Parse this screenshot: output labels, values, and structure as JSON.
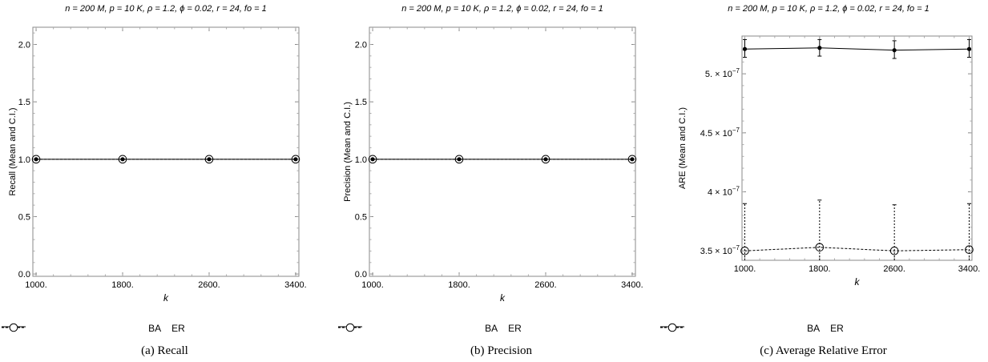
{
  "chart_data": [
    {
      "type": "line",
      "title": "n = 200 M, p = 10 K, ρ = 1.2, ϕ = 0.02, r = 24, fo = 1",
      "xlabel": "k",
      "ylabel": "Recall (Mean and C.I.)",
      "caption": "(a) Recall",
      "x": [
        1000,
        1800,
        2600,
        3400
      ],
      "x_tick_labels": [
        "1000.",
        "1800.",
        "2600.",
        "3400."
      ],
      "y_ticks": [
        0.0,
        0.5,
        1.0,
        1.5,
        2.0
      ],
      "y_tick_labels": [
        "0.0",
        "0.5",
        "1.0",
        "1.5",
        "2.0"
      ],
      "xlim": [
        970,
        3430
      ],
      "ylim": [
        -0.02,
        2.15
      ],
      "series": [
        {
          "name": "BA",
          "values": [
            1.0,
            1.0,
            1.0,
            1.0
          ],
          "ci_low": [
            1.0,
            1.0,
            1.0,
            1.0
          ],
          "ci_high": [
            1.0,
            1.0,
            1.0,
            1.0
          ]
        },
        {
          "name": "ER",
          "values": [
            1.0,
            1.0,
            1.0,
            1.0
          ],
          "ci_low": [
            1.0,
            1.0,
            1.0,
            1.0
          ],
          "ci_high": [
            1.0,
            1.0,
            1.0,
            1.0
          ]
        }
      ],
      "legend_position": "bottom"
    },
    {
      "type": "line",
      "title": "n = 200 M, p = 10 K, ρ = 1.2, ϕ = 0.02, r = 24, fo = 1",
      "xlabel": "k",
      "ylabel": "Precision (Mean and C.I.)",
      "caption": "(b) Precision",
      "x": [
        1000,
        1800,
        2600,
        3400
      ],
      "x_tick_labels": [
        "1000.",
        "1800.",
        "2600.",
        "3400."
      ],
      "y_ticks": [
        0.0,
        0.5,
        1.0,
        1.5,
        2.0
      ],
      "y_tick_labels": [
        "0.0",
        "0.5",
        "1.0",
        "1.5",
        "2.0"
      ],
      "xlim": [
        970,
        3430
      ],
      "ylim": [
        -0.02,
        2.15
      ],
      "series": [
        {
          "name": "BA",
          "values": [
            1.0,
            1.0,
            1.0,
            1.0
          ],
          "ci_low": [
            1.0,
            1.0,
            1.0,
            1.0
          ],
          "ci_high": [
            1.0,
            1.0,
            1.0,
            1.0
          ]
        },
        {
          "name": "ER",
          "values": [
            1.0,
            1.0,
            1.0,
            1.0
          ],
          "ci_low": [
            1.0,
            1.0,
            1.0,
            1.0
          ],
          "ci_high": [
            1.0,
            1.0,
            1.0,
            1.0
          ]
        }
      ],
      "legend_position": "bottom"
    },
    {
      "type": "line",
      "title": "n = 200 M, p = 10 K, ρ = 1.2, ϕ = 0.02, r = 24, fo = 1",
      "xlabel": "k",
      "ylabel": "ARE (Mean and C.I.)",
      "caption": "(c) Average Relative Error",
      "x": [
        1000,
        1800,
        2600,
        3400
      ],
      "x_tick_labels": [
        "1000.",
        "1800.",
        "2600.",
        "3400."
      ],
      "y_ticks": [
        3.5e-07,
        4e-07,
        4.5e-07,
        5e-07
      ],
      "y_tick_labels": [
        {
          "mant": "3.5",
          "exp": "−7"
        },
        {
          "mant": "4",
          "exp": "−7"
        },
        {
          "mant": "4.5",
          "exp": "−7"
        },
        {
          "mant": "5.",
          "exp": "−7"
        }
      ],
      "xlim": [
        970,
        3430
      ],
      "ylim": [
        3.42e-07,
        5.32e-07
      ],
      "series": [
        {
          "name": "BA",
          "values": [
            5.21e-07,
            5.22e-07,
            5.2e-07,
            5.21e-07
          ],
          "ci_low": [
            5.14e-07,
            5.15e-07,
            5.13e-07,
            5.14e-07
          ],
          "ci_high": [
            5.29e-07,
            5.29e-07,
            5.28e-07,
            5.29e-07
          ]
        },
        {
          "name": "ER",
          "values": [
            3.5e-07,
            3.53e-07,
            3.5e-07,
            3.51e-07
          ],
          "ci_low": [
            3.42e-07,
            3.42e-07,
            3.42e-07,
            3.42e-07
          ],
          "ci_high": [
            3.9e-07,
            3.93e-07,
            3.89e-07,
            3.9e-07
          ]
        }
      ],
      "legend_position": "bottom"
    }
  ],
  "legend": {
    "ba_label": "BA",
    "er_label": "ER"
  },
  "colors": {
    "line": "#000000",
    "marker_fill_ba": "#000000",
    "marker_fill_er": "#ffffff"
  }
}
